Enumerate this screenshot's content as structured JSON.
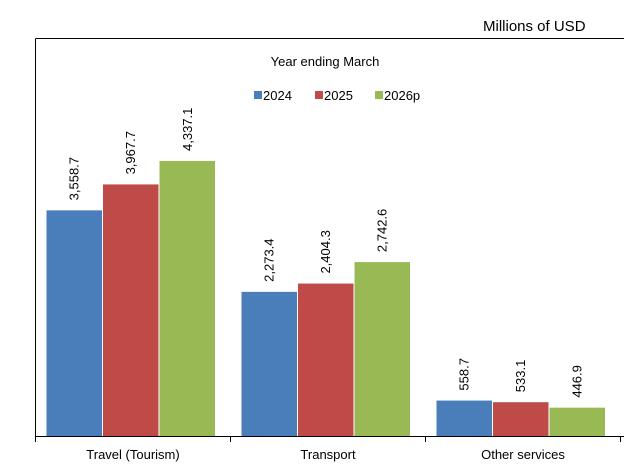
{
  "chart_data": {
    "type": "bar",
    "unit_note": "Millions of USD",
    "legend_title": "Year ending March",
    "categories": [
      "Travel (Tourism)",
      "Transport",
      "Other services"
    ],
    "series": [
      {
        "name": "2024",
        "color": "#4a7ebb",
        "values": [
          3558.7,
          2273.4,
          558.7
        ],
        "value_labels": [
          "3,558.7",
          "2,273.4",
          "558.7"
        ]
      },
      {
        "name": "2025",
        "color": "#be4b48",
        "values": [
          3967.7,
          2404.3,
          533.1
        ],
        "value_labels": [
          "3,967.7",
          "2,404.3",
          "533.1"
        ]
      },
      {
        "name": "2026p",
        "color": "#98b954",
        "values": [
          4337.1,
          2742.6,
          446.9
        ],
        "value_labels": [
          "4,337.1",
          "2,742.6",
          "446.9"
        ]
      }
    ]
  }
}
